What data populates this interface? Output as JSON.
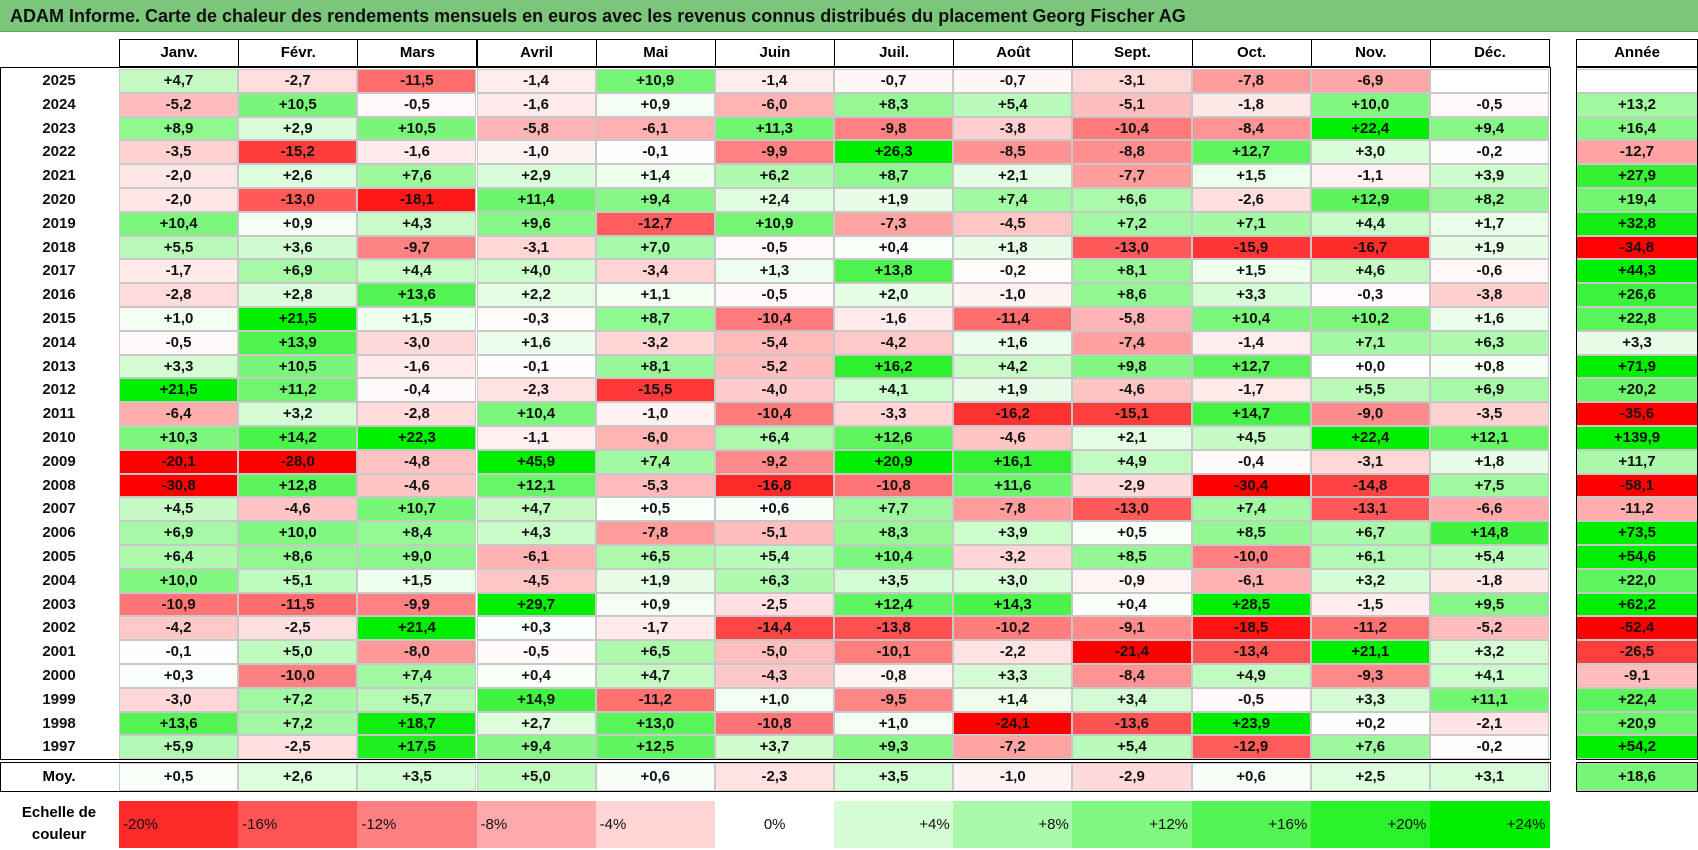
{
  "title": "ADAM Informe. Carte de chaleur des rendements mensuels en euros avec les revenus connus distribués du placement Georg Fischer AG",
  "chart_data": {
    "type": "heatmap",
    "months": [
      "Janv.",
      "Févr.",
      "Mars",
      "Avril",
      "Mai",
      "Juin",
      "Juil.",
      "Août",
      "Sept.",
      "Oct.",
      "Nov.",
      "Déc."
    ],
    "year_header": "Année",
    "rows": [
      {
        "year": "2025",
        "m": [
          "+4,7",
          "-2,7",
          "-11,5",
          "-1,4",
          "+10,9",
          "-1,4",
          "-0,7",
          "-0,7",
          "-3,1",
          "-7,8",
          "-6,9",
          ""
        ],
        "y": ""
      },
      {
        "year": "2024",
        "m": [
          "-5,2",
          "+10,5",
          "-0,5",
          "-1,6",
          "+0,9",
          "-6,0",
          "+8,3",
          "+5,4",
          "-5,1",
          "-1,8",
          "+10,0",
          "-0,5"
        ],
        "y": "+13,2"
      },
      {
        "year": "2023",
        "m": [
          "+8,9",
          "+2,9",
          "+10,5",
          "-5,8",
          "-6,1",
          "+11,3",
          "-9,8",
          "-3,8",
          "-10,4",
          "-8,4",
          "+22,4",
          "+9,4"
        ],
        "y": "+16,4"
      },
      {
        "year": "2022",
        "m": [
          "-3,5",
          "-15,2",
          "-1,6",
          "-1,0",
          "-0,1",
          "-9,9",
          "+26,3",
          "-8,5",
          "-8,8",
          "+12,7",
          "+3,0",
          "-0,2"
        ],
        "y": "-12,7"
      },
      {
        "year": "2021",
        "m": [
          "-2,0",
          "+2,6",
          "+7,6",
          "+2,9",
          "+1,4",
          "+6,2",
          "+8,7",
          "+2,1",
          "-7,7",
          "+1,5",
          "-1,1",
          "+3,9"
        ],
        "y": "+27,9"
      },
      {
        "year": "2020",
        "m": [
          "-2,0",
          "-13,0",
          "-18,1",
          "+11,4",
          "+9,4",
          "+2,4",
          "+1,9",
          "+7,4",
          "+6,6",
          "-2,6",
          "+12,9",
          "+8,2"
        ],
        "y": "+19,4"
      },
      {
        "year": "2019",
        "m": [
          "+10,4",
          "+0,9",
          "+4,3",
          "+9,6",
          "-12,7",
          "+10,9",
          "-7,3",
          "-4,5",
          "+7,2",
          "+7,1",
          "+4,4",
          "+1,7"
        ],
        "y": "+32,8"
      },
      {
        "year": "2018",
        "m": [
          "+5,5",
          "+3,6",
          "-9,7",
          "-3,1",
          "+7,0",
          "-0,5",
          "+0,4",
          "+1,8",
          "-13,0",
          "-15,9",
          "-16,7",
          "+1,9"
        ],
        "y": "-34,8"
      },
      {
        "year": "2017",
        "m": [
          "-1,7",
          "+6,9",
          "+4,4",
          "+4,0",
          "-3,4",
          "+1,3",
          "+13,8",
          "-0,2",
          "+8,1",
          "+1,5",
          "+4,6",
          "-0,6"
        ],
        "y": "+44,3"
      },
      {
        "year": "2016",
        "m": [
          "-2,8",
          "+2,8",
          "+13,6",
          "+2,2",
          "+1,1",
          "-0,5",
          "+2,0",
          "-1,0",
          "+8,6",
          "+3,3",
          "-0,3",
          "-3,8"
        ],
        "y": "+26,6"
      },
      {
        "year": "2015",
        "m": [
          "+1,0",
          "+21,5",
          "+1,5",
          "-0,3",
          "+8,7",
          "-10,4",
          "-1,6",
          "-11,4",
          "-5,8",
          "+10,4",
          "+10,2",
          "+1,6"
        ],
        "y": "+22,8"
      },
      {
        "year": "2014",
        "m": [
          "-0,5",
          "+13,9",
          "-3,0",
          "+1,6",
          "-3,2",
          "-5,4",
          "-4,2",
          "+1,6",
          "-7,4",
          "-1,4",
          "+7,1",
          "+6,3"
        ],
        "y": "+3,3"
      },
      {
        "year": "2013",
        "m": [
          "+3,3",
          "+10,5",
          "-1,6",
          "-0,1",
          "+8,1",
          "-5,2",
          "+16,2",
          "+4,2",
          "+9,8",
          "+12,7",
          "+0,0",
          "+0,8"
        ],
        "y": "+71,9"
      },
      {
        "year": "2012",
        "m": [
          "+21,5",
          "+11,2",
          "-0,4",
          "-2,3",
          "-15,5",
          "-4,0",
          "+4,1",
          "+1,9",
          "-4,6",
          "-1,7",
          "+5,5",
          "+6,9"
        ],
        "y": "+20,2"
      },
      {
        "year": "2011",
        "m": [
          "-6,4",
          "+3,2",
          "-2,8",
          "+10,4",
          "-1,0",
          "-10,4",
          "-3,3",
          "-16,2",
          "-15,1",
          "+14,7",
          "-9,0",
          "-3,5"
        ],
        "y": "-35,6"
      },
      {
        "year": "2010",
        "m": [
          "+10,3",
          "+14,2",
          "+22,3",
          "-1,1",
          "-6,0",
          "+6,4",
          "+12,6",
          "-4,6",
          "+2,1",
          "+4,5",
          "+22,4",
          "+12,1"
        ],
        "y": "+139,9"
      },
      {
        "year": "2009",
        "m": [
          "-20,1",
          "-28,0",
          "-4,8",
          "+45,9",
          "+7,4",
          "-9,2",
          "+20,9",
          "+16,1",
          "+4,9",
          "-0,4",
          "-3,1",
          "+1,8"
        ],
        "y": "+11,7"
      },
      {
        "year": "2008",
        "m": [
          "-30,8",
          "+12,8",
          "-4,6",
          "+12,1",
          "-5,3",
          "-16,8",
          "-10,8",
          "+11,6",
          "-2,9",
          "-30,4",
          "-14,8",
          "+7,5"
        ],
        "y": "-58,1"
      },
      {
        "year": "2007",
        "m": [
          "+4,5",
          "-4,6",
          "+10,7",
          "+4,7",
          "+0,5",
          "+0,6",
          "+7,7",
          "-7,8",
          "-13,0",
          "+7,4",
          "-13,1",
          "-6,6"
        ],
        "y": "-11,2"
      },
      {
        "year": "2006",
        "m": [
          "+6,9",
          "+10,0",
          "+8,4",
          "+4,3",
          "-7,8",
          "-5,1",
          "+8,3",
          "+3,9",
          "+0,5",
          "+8,5",
          "+6,7",
          "+14,8"
        ],
        "y": "+73,5"
      },
      {
        "year": "2005",
        "m": [
          "+6,4",
          "+8,6",
          "+9,0",
          "-6,1",
          "+6,5",
          "+5,4",
          "+10,4",
          "-3,2",
          "+8,5",
          "-10,0",
          "+6,1",
          "+5,4"
        ],
        "y": "+54,6"
      },
      {
        "year": "2004",
        "m": [
          "+10,0",
          "+5,1",
          "+1,5",
          "-4,5",
          "+1,9",
          "+6,3",
          "+3,5",
          "+3,0",
          "-0,9",
          "-6,1",
          "+3,2",
          "-1,8"
        ],
        "y": "+22,0"
      },
      {
        "year": "2003",
        "m": [
          "-10,9",
          "-11,5",
          "-9,9",
          "+29,7",
          "+0,9",
          "-2,5",
          "+12,4",
          "+14,3",
          "+0,4",
          "+28,5",
          "-1,5",
          "+9,5"
        ],
        "y": "+62,2"
      },
      {
        "year": "2002",
        "m": [
          "-4,2",
          "-2,5",
          "+21,4",
          "+0,3",
          "-1,7",
          "-14,4",
          "-13,8",
          "-10,2",
          "-9,1",
          "-18,5",
          "-11,2",
          "-5,2"
        ],
        "y": "-52,4"
      },
      {
        "year": "2001",
        "m": [
          "-0,1",
          "+5,0",
          "-8,0",
          "-0,5",
          "+6,5",
          "-5,0",
          "-10,1",
          "-2,2",
          "-21,4",
          "-13,4",
          "+21,1",
          "+3,2"
        ],
        "y": "-26,5"
      },
      {
        "year": "2000",
        "m": [
          "+0,3",
          "-10,0",
          "+7,4",
          "+0,4",
          "+4,7",
          "-4,3",
          "-0,8",
          "+3,3",
          "-8,4",
          "+4,9",
          "-9,3",
          "+4,1"
        ],
        "y": "-9,1"
      },
      {
        "year": "1999",
        "m": [
          "-3,0",
          "+7,2",
          "+5,7",
          "+14,9",
          "-11,2",
          "+1,0",
          "-9,5",
          "+1,4",
          "+3,4",
          "-0,5",
          "+3,3",
          "+11,1"
        ],
        "y": "+22,4"
      },
      {
        "year": "1998",
        "m": [
          "+13,6",
          "+7,2",
          "+18,7",
          "+2,7",
          "+13,0",
          "-10,8",
          "+1,0",
          "-24,1",
          "-13,6",
          "+23,9",
          "+0,2",
          "-2,1"
        ],
        "y": "+20,9"
      },
      {
        "year": "1997",
        "m": [
          "+5,9",
          "-2,5",
          "+17,5",
          "+9,4",
          "+12,5",
          "+3,7",
          "+9,3",
          "-7,2",
          "+5,4",
          "-12,9",
          "+7,6",
          "-0,2"
        ],
        "y": "+54,2"
      }
    ],
    "average": {
      "label": "Moy.",
      "m": [
        "+0,5",
        "+2,6",
        "+3,5",
        "+5,0",
        "+0,6",
        "-2,3",
        "+3,5",
        "-1,0",
        "-2,9",
        "+0,6",
        "+2,5",
        "+3,1"
      ],
      "y": "+18,6"
    },
    "scale": {
      "label_line1": "Echelle de",
      "label_line2": "couleur",
      "stops": [
        "-20%",
        "-16%",
        "-12%",
        "-8%",
        "-4%",
        "0%",
        "+4%",
        "+8%",
        "+12%",
        "+16%",
        "+20%",
        "+24%"
      ],
      "stop_values": [
        -20,
        -16,
        -12,
        -8,
        -4,
        0,
        4,
        8,
        12,
        16,
        20,
        24
      ]
    },
    "colors": {
      "negative_max": "#ff0000",
      "zero": "#ffffff",
      "positive_max": "#00ee00",
      "title_bg": "#7cc67c"
    }
  }
}
